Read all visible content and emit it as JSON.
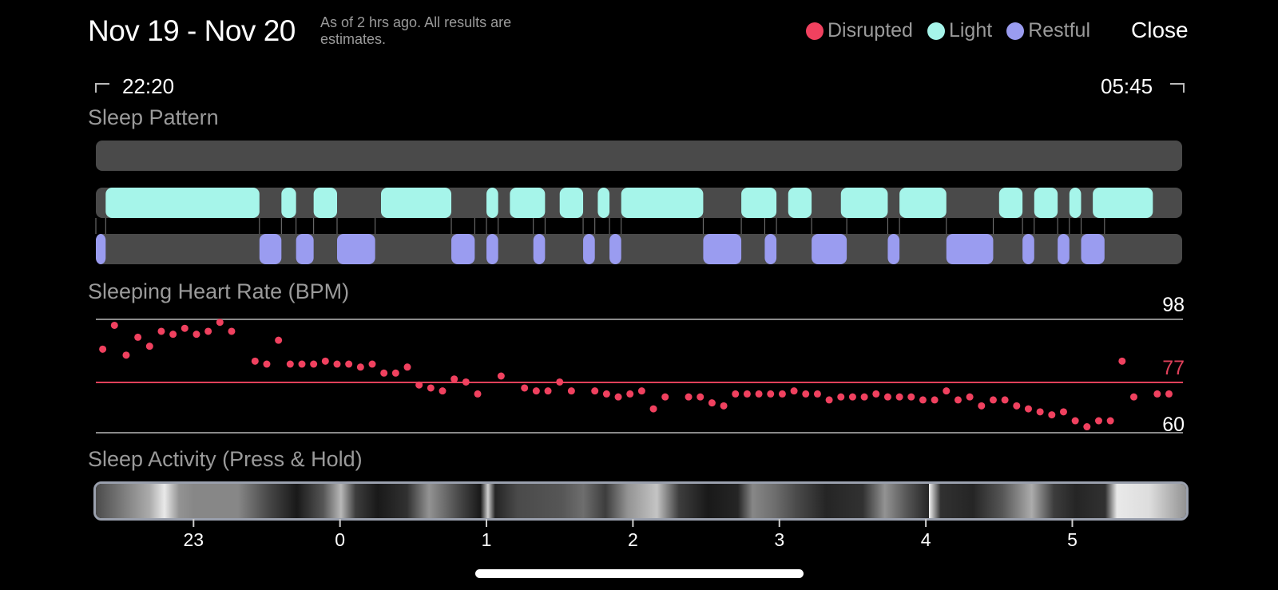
{
  "header": {
    "date_range": "Nov 19 - Nov 20",
    "as_of": "As of 2 hrs ago. All results are estimates.",
    "close_label": "Close"
  },
  "legend": [
    {
      "label": "Disrupted",
      "color": "#f0415f"
    },
    {
      "label": "Light",
      "color": "#a6f5ea"
    },
    {
      "label": "Restful",
      "color": "#9a9cf0"
    }
  ],
  "times": {
    "start": "22:20",
    "end": "05:45"
  },
  "sections": {
    "sleep_pattern": "Sleep Pattern",
    "heart_rate": "Sleeping Heart Rate (BPM)",
    "activity": "Sleep Activity (Press & Hold)"
  },
  "colors": {
    "track": "#4a4a4a",
    "light": "#a6f5ea",
    "restful": "#9a9cf0",
    "heart_dot": "#f0415f",
    "avg_line": "#e0405a",
    "range_line": "#8a8a8a"
  },
  "chart_data": {
    "type": "scatter",
    "ylabel": "Sleeping Heart Rate (BPM)",
    "yticks": {
      "max": 98,
      "avg": 77,
      "min": 60
    },
    "x_range": [
      22.333,
      29.75
    ],
    "x_tick_labels": [
      {
        "value": 23,
        "label": "23"
      },
      {
        "value": 24,
        "label": "0"
      },
      {
        "value": 25,
        "label": "1"
      },
      {
        "value": 26,
        "label": "2"
      },
      {
        "value": 27,
        "label": "3"
      },
      {
        "value": 28,
        "label": "4"
      },
      {
        "value": 29,
        "label": "5"
      }
    ],
    "heart_rate_points": [
      [
        22.38,
        88
      ],
      [
        22.46,
        96
      ],
      [
        22.54,
        86
      ],
      [
        22.62,
        92
      ],
      [
        22.7,
        89
      ],
      [
        22.78,
        94
      ],
      [
        22.86,
        93
      ],
      [
        22.94,
        95
      ],
      [
        23.02,
        93
      ],
      [
        23.1,
        94
      ],
      [
        23.18,
        97
      ],
      [
        23.26,
        94
      ],
      [
        23.42,
        84
      ],
      [
        23.5,
        83
      ],
      [
        23.58,
        91
      ],
      [
        23.66,
        83
      ],
      [
        23.74,
        83
      ],
      [
        23.82,
        83
      ],
      [
        23.9,
        84
      ],
      [
        23.98,
        83
      ],
      [
        24.06,
        83
      ],
      [
        24.14,
        82
      ],
      [
        24.22,
        83
      ],
      [
        24.3,
        80
      ],
      [
        24.38,
        80
      ],
      [
        24.46,
        82
      ],
      [
        24.54,
        76
      ],
      [
        24.62,
        75
      ],
      [
        24.7,
        74
      ],
      [
        24.78,
        78
      ],
      [
        24.86,
        77
      ],
      [
        24.94,
        73
      ],
      [
        25.1,
        79
      ],
      [
        25.26,
        75
      ],
      [
        25.34,
        74
      ],
      [
        25.42,
        74
      ],
      [
        25.5,
        77
      ],
      [
        25.58,
        74
      ],
      [
        25.74,
        74
      ],
      [
        25.82,
        73
      ],
      [
        25.9,
        72
      ],
      [
        25.98,
        73
      ],
      [
        26.06,
        74
      ],
      [
        26.14,
        68
      ],
      [
        26.22,
        72
      ],
      [
        26.38,
        72
      ],
      [
        26.46,
        72
      ],
      [
        26.54,
        70
      ],
      [
        26.62,
        69
      ],
      [
        26.7,
        73
      ],
      [
        26.78,
        73
      ],
      [
        26.86,
        73
      ],
      [
        26.94,
        73
      ],
      [
        27.02,
        73
      ],
      [
        27.1,
        74
      ],
      [
        27.18,
        73
      ],
      [
        27.26,
        73
      ],
      [
        27.34,
        71
      ],
      [
        27.42,
        72
      ],
      [
        27.5,
        72
      ],
      [
        27.58,
        72
      ],
      [
        27.66,
        73
      ],
      [
        27.74,
        72
      ],
      [
        27.82,
        72
      ],
      [
        27.9,
        72
      ],
      [
        27.98,
        71
      ],
      [
        28.06,
        71
      ],
      [
        28.14,
        74
      ],
      [
        28.22,
        71
      ],
      [
        28.3,
        72
      ],
      [
        28.38,
        69
      ],
      [
        28.46,
        71
      ],
      [
        28.54,
        71
      ],
      [
        28.62,
        69
      ],
      [
        28.7,
        68
      ],
      [
        28.78,
        67
      ],
      [
        28.86,
        66
      ],
      [
        28.94,
        67
      ],
      [
        29.02,
        64
      ],
      [
        29.1,
        62
      ],
      [
        29.18,
        64
      ],
      [
        29.26,
        64
      ],
      [
        29.34,
        84
      ],
      [
        29.42,
        72
      ],
      [
        29.58,
        73
      ],
      [
        29.66,
        73
      ]
    ],
    "sleep_pattern": {
      "light": [
        [
          22.4,
          23.45
        ],
        [
          23.6,
          23.7
        ],
        [
          23.82,
          23.98
        ],
        [
          24.28,
          24.76
        ],
        [
          25,
          25.08
        ],
        [
          25.16,
          25.4
        ],
        [
          25.5,
          25.66
        ],
        [
          25.76,
          25.84
        ],
        [
          25.92,
          26.48
        ],
        [
          26.74,
          26.98
        ],
        [
          27.06,
          27.22
        ],
        [
          27.42,
          27.74
        ],
        [
          27.82,
          28.14
        ],
        [
          28.5,
          28.66
        ],
        [
          28.74,
          28.9
        ],
        [
          28.98,
          29.06
        ],
        [
          29.14,
          29.55
        ]
      ],
      "restful": [
        [
          22.333,
          22.4
        ],
        [
          23.45,
          23.6
        ],
        [
          23.7,
          23.82
        ],
        [
          23.98,
          24.24
        ],
        [
          24.76,
          24.92
        ],
        [
          25,
          25.08
        ],
        [
          25.32,
          25.4
        ],
        [
          25.66,
          25.74
        ],
        [
          25.84,
          25.92
        ],
        [
          26.48,
          26.74
        ],
        [
          26.9,
          26.98
        ],
        [
          27.22,
          27.46
        ],
        [
          27.74,
          27.82
        ],
        [
          28.14,
          28.46
        ],
        [
          28.66,
          28.74
        ],
        [
          28.9,
          28.98
        ],
        [
          29.06,
          29.22
        ]
      ]
    },
    "activity_intensity": [
      [
        22.33,
        0.3
      ],
      [
        22.7,
        0.7
      ],
      [
        22.8,
        0.95
      ],
      [
        22.9,
        0.6
      ],
      [
        23.0,
        0.55
      ],
      [
        23.3,
        0.55
      ],
      [
        23.5,
        0.3
      ],
      [
        23.7,
        0.1
      ],
      [
        23.88,
        0.35
      ],
      [
        24.0,
        0.75
      ],
      [
        24.1,
        0.25
      ],
      [
        24.25,
        0.1
      ],
      [
        24.45,
        0.2
      ],
      [
        24.6,
        0.6
      ],
      [
        24.8,
        0.3
      ],
      [
        24.95,
        0.1
      ],
      [
        25.0,
        0.85
      ],
      [
        25.05,
        0.15
      ],
      [
        25.2,
        0.3
      ],
      [
        25.5,
        0.35
      ],
      [
        25.65,
        0.45
      ],
      [
        25.8,
        0.25
      ],
      [
        25.95,
        0.6
      ],
      [
        26.15,
        0.8
      ],
      [
        26.3,
        0.25
      ],
      [
        26.5,
        0.1
      ],
      [
        26.7,
        0.15
      ],
      [
        26.8,
        0.55
      ],
      [
        26.95,
        0.45
      ],
      [
        27.1,
        0.3
      ],
      [
        27.3,
        0.15
      ],
      [
        27.55,
        0.2
      ],
      [
        27.7,
        0.6
      ],
      [
        27.85,
        0.35
      ],
      [
        28.0,
        0.15
      ],
      [
        28.0,
        1.0
      ],
      [
        28.08,
        0.2
      ],
      [
        28.3,
        0.15
      ],
      [
        28.5,
        0.35
      ],
      [
        28.7,
        0.7
      ],
      [
        28.85,
        0.25
      ],
      [
        29.0,
        0.15
      ],
      [
        29.2,
        0.2
      ],
      [
        29.28,
        0.95
      ],
      [
        29.5,
        0.9
      ],
      [
        29.75,
        0.6
      ]
    ]
  }
}
